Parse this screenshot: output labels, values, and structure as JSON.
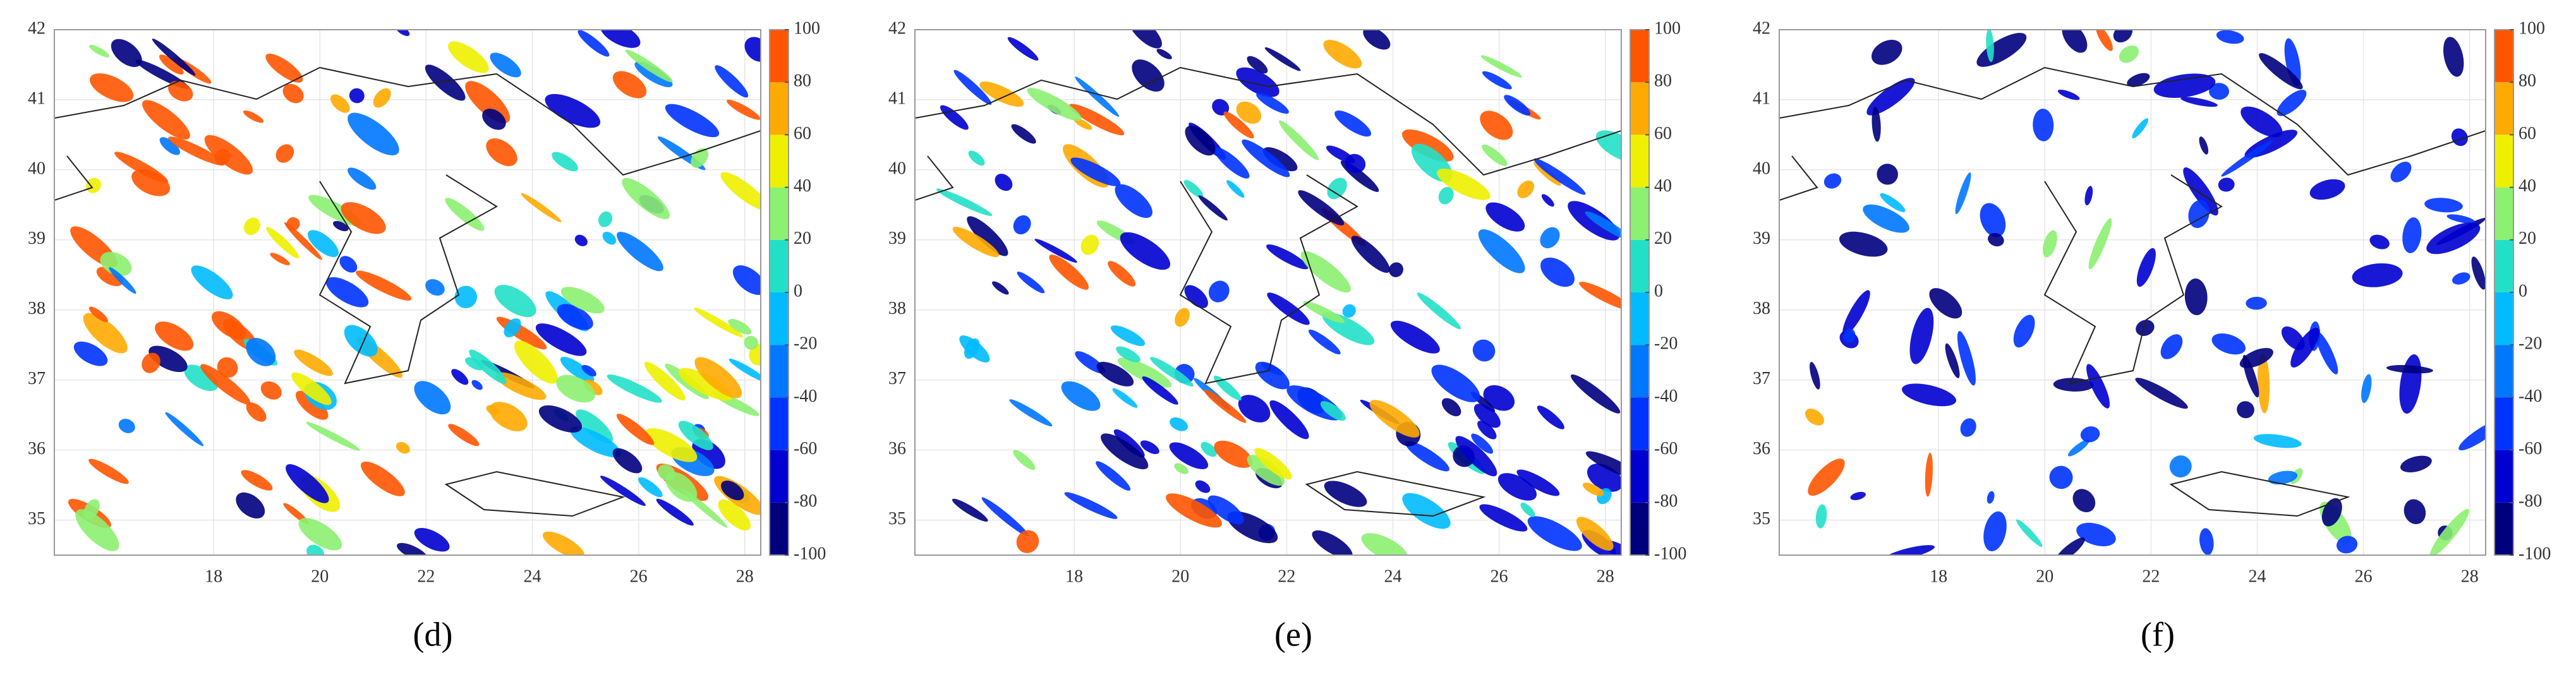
{
  "panels": [
    {
      "label": "(d)",
      "xlim": [
        15.0,
        28.3
      ],
      "xticks": [
        18,
        20,
        22,
        24,
        26,
        28
      ],
      "ylim": [
        34.5,
        42
      ],
      "yticks": [
        35,
        36,
        37,
        38,
        39,
        40,
        41,
        42
      ],
      "clim": [
        -100,
        100
      ],
      "cticks": [
        -100,
        -80,
        -60,
        -40,
        -20,
        0,
        20,
        40,
        60,
        80,
        100
      ]
    },
    {
      "label": "(e)",
      "xlim": [
        15.0,
        28.3
      ],
      "xticks": [
        18,
        20,
        22,
        24,
        26,
        28
      ],
      "ylim": [
        34.5,
        42
      ],
      "yticks": [
        35,
        36,
        37,
        38,
        39,
        40,
        41,
        42
      ],
      "clim": [
        -100,
        100
      ],
      "cticks": [
        -100,
        -80,
        -60,
        -40,
        -20,
        0,
        20,
        40,
        60,
        80,
        100
      ]
    },
    {
      "label": "(f)",
      "xlim": [
        15.0,
        28.3
      ],
      "xticks": [
        18,
        20,
        22,
        24,
        26,
        28
      ],
      "ylim": [
        34.5,
        42
      ],
      "yticks": [
        35,
        36,
        37,
        38,
        39,
        40,
        41,
        42
      ],
      "clim": [
        -100,
        100
      ],
      "cticks": [
        -100,
        -80,
        -60,
        -40,
        -20,
        0,
        20,
        40,
        60,
        80,
        100
      ]
    }
  ],
  "colors": [
    "#00007f",
    "#0000d0",
    "#0033ff",
    "#0077ff",
    "#00bbff",
    "#22e0c8",
    "#8cf070",
    "#eef000",
    "#ffaa00",
    "#ff5500"
  ]
}
